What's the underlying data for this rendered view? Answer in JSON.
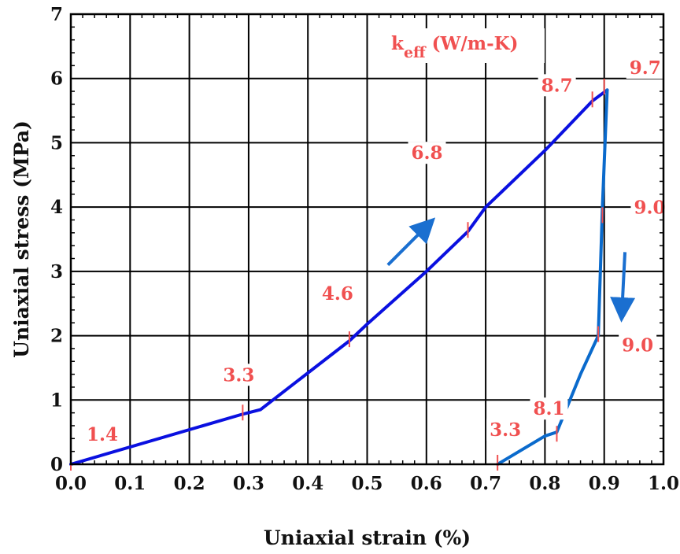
{
  "chart_data": {
    "type": "line",
    "xlabel": "Uniaxial strain (%)",
    "ylabel": "Uniaxial stress (MPa)",
    "xlim": [
      0.0,
      1.0
    ],
    "ylim": [
      0,
      7
    ],
    "x_ticks": [
      "0.0",
      "0.1",
      "0.2",
      "0.3",
      "0.4",
      "0.5",
      "0.6",
      "0.7",
      "0.8",
      "0.9",
      "1.0"
    ],
    "y_ticks": [
      "0",
      "1",
      "2",
      "3",
      "4",
      "5",
      "6",
      "7"
    ],
    "grid": true,
    "legend_title": {
      "base": "k",
      "sub": "eff",
      "unit": " (W/m-K)"
    },
    "series": [
      {
        "color": "#0a10e0",
        "x": [
          0.0,
          0.29,
          0.32,
          0.47,
          0.5,
          0.6,
          0.67,
          0.7,
          0.8,
          0.88,
          0.905
        ],
        "y": [
          0.0,
          0.78,
          0.85,
          1.92,
          2.18,
          3.0,
          3.62,
          4.0,
          4.88,
          5.65,
          5.82
        ]
      },
      {
        "color": "#0a6acc",
        "x": [
          0.905,
          0.897,
          0.89,
          0.885,
          0.86,
          0.82,
          0.8,
          0.72
        ],
        "y": [
          5.82,
          4.0,
          2.0,
          1.9,
          1.4,
          0.5,
          0.44,
          0.0
        ]
      }
    ],
    "annotations": [
      {
        "text": "1.4",
        "x": 0.0,
        "y": 0.0,
        "color": "#f05050"
      },
      {
        "text": "3.3",
        "x": 0.29,
        "y": 0.78,
        "color": "#f05050"
      },
      {
        "text": "4.6",
        "x": 0.47,
        "y": 1.92,
        "color": "#f05050"
      },
      {
        "text": "6.8",
        "x": 0.67,
        "y": 3.62,
        "color": "#f05050"
      },
      {
        "text": "8.7",
        "x": 0.88,
        "y": 5.65,
        "color": "#f05050"
      },
      {
        "text": "9.7",
        "x": 0.9,
        "y": 5.85,
        "color": "#f05050"
      },
      {
        "text": "9.0",
        "x": 0.897,
        "y": 3.85,
        "color": "#f05050"
      },
      {
        "text": "9.0",
        "x": 0.89,
        "y": 2.0,
        "color": "#f05050"
      },
      {
        "text": "8.1",
        "x": 0.82,
        "y": 0.45,
        "color": "#f05050"
      },
      {
        "text": "3.3",
        "x": 0.72,
        "y": 0.0,
        "color": "#f05050"
      }
    ],
    "arrows": [
      {
        "name": "loading-arrow",
        "color": "#1a6fd0",
        "from": [
          0.535,
          3.1
        ],
        "to": [
          0.6,
          3.7
        ]
      },
      {
        "name": "unloading-arrow",
        "color": "#1a6fd0",
        "from": [
          0.935,
          3.3
        ],
        "to": [
          0.93,
          2.4
        ]
      }
    ]
  }
}
